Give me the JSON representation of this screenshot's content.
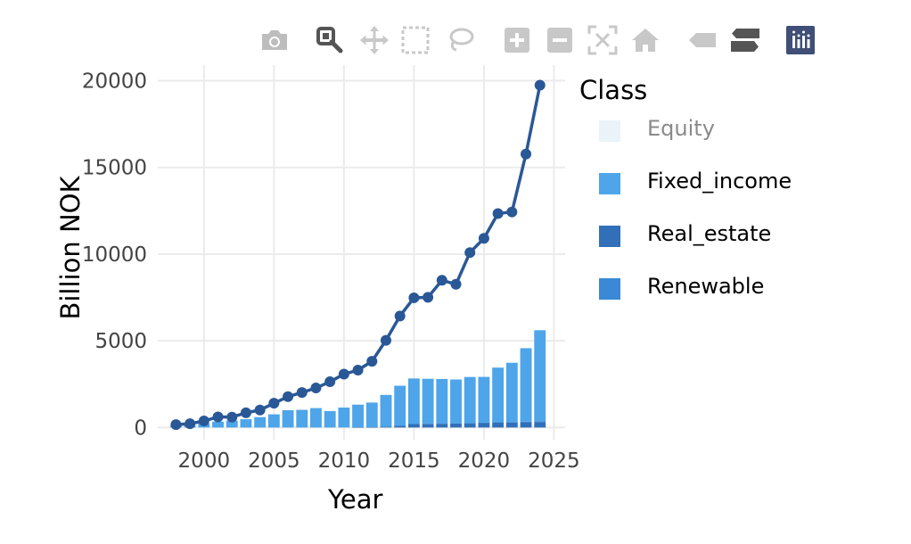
{
  "modebar": {
    "buttons": [
      {
        "name": "camera-icon",
        "color": "#bdbdbd"
      },
      {
        "name": "zoom-icon",
        "color": "#555555"
      },
      {
        "name": "pan-icon",
        "color": "#c8c8c8"
      },
      {
        "name": "box-select-icon",
        "color": "#c8c8c8"
      },
      {
        "name": "lasso-select-icon",
        "color": "#c8c8c8"
      },
      {
        "name": "zoom-in-icon",
        "color": "#c8c8c8"
      },
      {
        "name": "zoom-out-icon",
        "color": "#c8c8c8"
      },
      {
        "name": "autoscale-icon",
        "color": "#c8c8c8"
      },
      {
        "name": "reset-axes-icon",
        "color": "#c8c8c8"
      },
      {
        "name": "hover-closest-icon",
        "color": "#c8c8c8"
      },
      {
        "name": "hover-compare-icon",
        "color": "#555555"
      },
      {
        "name": "plotly-logo-icon",
        "color": "#3f4f75"
      }
    ]
  },
  "legend": {
    "title": "Class",
    "items": [
      {
        "label": "Equity",
        "color": "#d6e8f2",
        "visible": false
      },
      {
        "label": "Fixed_income",
        "color": "#4ea5ea",
        "visible": true
      },
      {
        "label": "Real_estate",
        "color": "#3170b8",
        "visible": true
      },
      {
        "label": "Renewable",
        "color": "#3a88d6",
        "visible": true
      }
    ]
  },
  "chart_data": {
    "type": "bar",
    "xlabel": "Year",
    "ylabel": "Billion NOK",
    "xlim": [
      1996.7,
      2025.8
    ],
    "ylim": [
      -700,
      20900
    ],
    "xticks": [
      2000,
      2005,
      2010,
      2015,
      2020,
      2025
    ],
    "yticks": [
      0,
      5000,
      10000,
      15000,
      20000
    ],
    "grid": true,
    "barmode": "stack",
    "legend_position": "right",
    "x": [
      1998,
      1999,
      2000,
      2001,
      2002,
      2003,
      2004,
      2005,
      2006,
      2007,
      2008,
      2009,
      2010,
      2011,
      2012,
      2013,
      2014,
      2015,
      2016,
      2017,
      2018,
      2019,
      2020,
      2021,
      2022,
      2023,
      2024
    ],
    "series": [
      {
        "name": "Fixed_income",
        "type": "bar",
        "color": "#4ea5ea",
        "values": [
          100,
          140,
          240,
          340,
          400,
          480,
          600,
          760,
          1000,
          1020,
          1120,
          950,
          1150,
          1310,
          1420,
          1830,
          2310,
          2630,
          2600,
          2580,
          2540,
          2660,
          2640,
          3150,
          3420,
          4240,
          5260
        ]
      },
      {
        "name": "Real_estate",
        "type": "bar",
        "color": "#3170b8",
        "values": [
          0,
          0,
          0,
          0,
          0,
          0,
          0,
          0,
          0,
          0,
          0,
          0,
          0,
          10,
          20,
          50,
          100,
          200,
          210,
          220,
          230,
          250,
          270,
          290,
          300,
          310,
          320
        ]
      },
      {
        "name": "Renewable",
        "type": "bar",
        "color": "#3a88d6",
        "values": [
          0,
          0,
          0,
          0,
          0,
          0,
          0,
          0,
          0,
          0,
          0,
          0,
          0,
          0,
          0,
          0,
          0,
          0,
          0,
          0,
          0,
          5,
          10,
          15,
          15,
          25,
          30
        ]
      },
      {
        "name": "",
        "type": "line",
        "color": "#2a5896",
        "values": [
          170,
          220,
          380,
          610,
          600,
          850,
          1010,
          1400,
          1780,
          2020,
          2280,
          2640,
          3080,
          3310,
          3820,
          5030,
          6430,
          7480,
          7510,
          8490,
          8260,
          10090,
          10910,
          12340,
          12430,
          15770,
          19740
        ]
      }
    ]
  }
}
